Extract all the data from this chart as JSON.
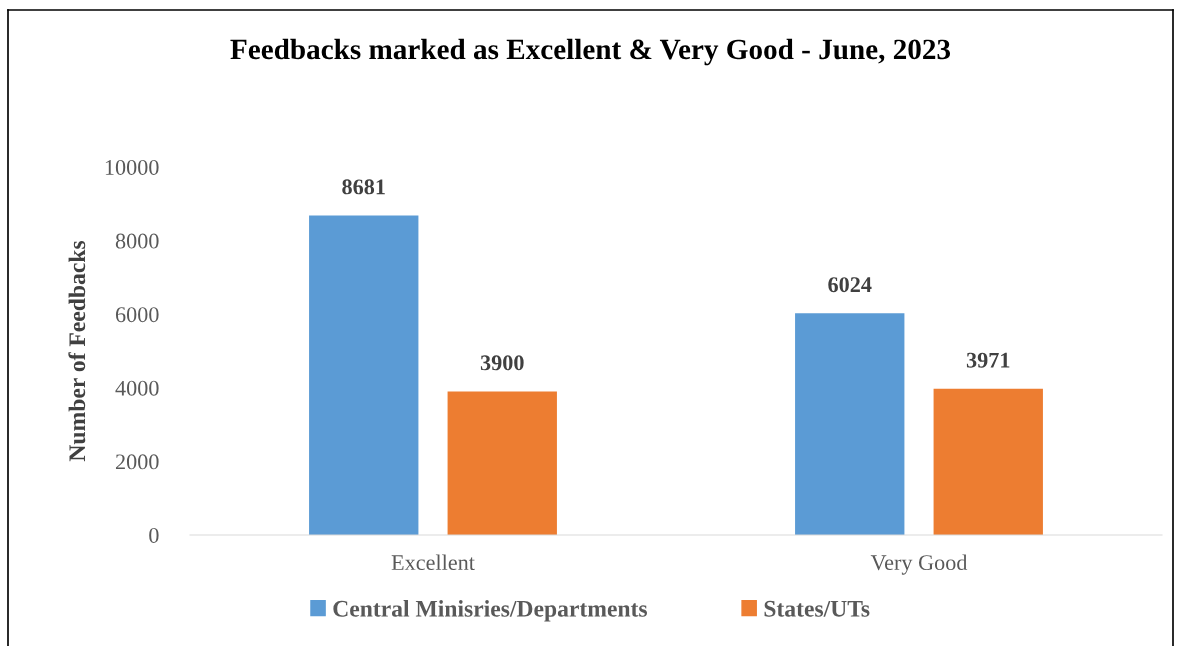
{
  "chart_data": {
    "type": "bar",
    "title": "Feedbacks marked as Excellent & Very Good - June, 2023",
    "ylabel": "Number of Feedbacks",
    "categories": [
      "Excellent",
      "Very Good"
    ],
    "series": [
      {
        "name": "Central Minisries/Departments",
        "color": "#5b9bd5",
        "values": [
          8681,
          6024
        ]
      },
      {
        "name": "States/UTs",
        "color": "#ed7d31",
        "values": [
          3900,
          3971
        ]
      }
    ],
    "ylim": [
      0,
      10000
    ],
    "yticks": [
      0,
      2000,
      4000,
      6000,
      8000,
      10000
    ],
    "grid": false,
    "legend": "bottom",
    "data_labels": true
  }
}
